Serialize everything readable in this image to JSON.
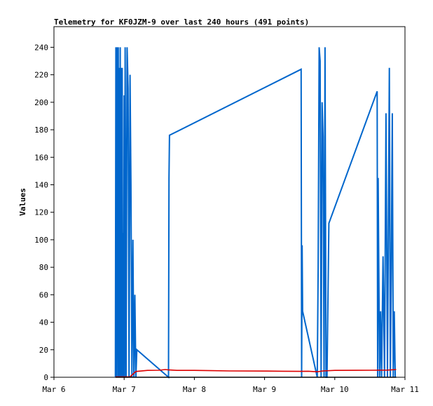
{
  "chart_data": {
    "type": "line",
    "title": "Telemetry for KF0JZM-9 over last 240 hours (491 points)",
    "xlabel": "",
    "ylabel": "Values",
    "x_ticks": [
      "Mar 6",
      "Mar 7",
      "Mar 8",
      "Mar 9",
      "Mar 10",
      "Mar 11"
    ],
    "xlim": [
      "Mar 6",
      "Mar 11"
    ],
    "ylim": [
      0,
      255
    ],
    "y_ticks": [
      0,
      20,
      40,
      60,
      80,
      100,
      120,
      140,
      160,
      180,
      200,
      220,
      240
    ],
    "grid": false,
    "legend": "none",
    "series": [
      {
        "color": "#0066cc",
        "x": [
          "Mar 6 21:00",
          "Mar 6 21:10",
          "Mar 6 21:20",
          "Mar 6 21:30",
          "Mar 6 21:40",
          "Mar 6 21:50",
          "Mar 6 22:00",
          "Mar 6 22:10",
          "Mar 6 22:20",
          "Mar 6 22:30",
          "Mar 6 22:40",
          "Mar 6 22:50",
          "Mar 6 23:00",
          "Mar 6 23:10",
          "Mar 6 23:20",
          "Mar 6 23:30",
          "Mar 6 23:40",
          "Mar 6 23:50",
          "Mar 7 00:00",
          "Mar 7 00:10",
          "Mar 7 00:20",
          "Mar 7 00:40",
          "Mar 7 01:00",
          "Mar 7 01:20",
          "Mar 7 01:40",
          "Mar 7 02:00",
          "Mar 7 02:20",
          "Mar 7 02:40",
          "Mar 7 03:00",
          "Mar 7 03:20",
          "Mar 7 03:40",
          "Mar 7 04:00",
          "Mar 7 04:20",
          "Mar 7 15:10",
          "Mar 7 15:20",
          "Mar 7 15:30",
          "Mar 9 12:30",
          "Mar 9 12:40",
          "Mar 9 12:50",
          "Mar 9 13:00",
          "Mar 9 18:00",
          "Mar 9 18:20",
          "Mar 9 18:40",
          "Mar 9 19:00",
          "Mar 9 19:20",
          "Mar 9 19:40",
          "Mar 9 20:00",
          "Mar 9 20:20",
          "Mar 9 20:40",
          "Mar 9 21:00",
          "Mar 9 21:20",
          "Mar 9 22:00",
          "Mar 10 14:30",
          "Mar 10 14:40",
          "Mar 10 14:50",
          "Mar 10 15:00",
          "Mar 10 15:20",
          "Mar 10 15:40",
          "Mar 10 16:00",
          "Mar 10 16:30",
          "Mar 10 17:00",
          "Mar 10 17:30",
          "Mar 10 18:00",
          "Mar 10 18:40",
          "Mar 10 19:00",
          "Mar 10 19:20",
          "Mar 10 19:40",
          "Mar 10 20:00",
          "Mar 10 20:20",
          "Mar 10 20:40"
        ],
        "y": [
          0,
          240,
          0,
          240,
          225,
          0,
          240,
          0,
          225,
          0,
          240,
          0,
          225,
          0,
          225,
          0,
          105,
          0,
          205,
          0,
          240,
          0,
          240,
          210,
          0,
          220,
          140,
          0,
          100,
          0,
          60,
          0,
          20,
          0,
          145,
          176,
          224,
          0,
          96,
          48,
          0,
          80,
          240,
          230,
          0,
          200,
          175,
          0,
          240,
          0,
          0,
          112,
          208,
          0,
          145,
          95,
          0,
          48,
          0,
          88,
          0,
          192,
          0,
          225,
          0,
          80,
          192,
          0,
          48,
          0
        ]
      },
      {
        "color": "#dd0000",
        "x": [
          "Mar 6 21:00",
          "Mar 7 02:00",
          "Mar 7 04:00",
          "Mar 7 08:00",
          "Mar 7 12:00",
          "Mar 7 14:00",
          "Mar 7 15:00",
          "Mar 7 18:00",
          "Mar 8 00:00",
          "Mar 8 06:00",
          "Mar 8 12:00",
          "Mar 9 00:00",
          "Mar 9 06:00",
          "Mar 9 12:00",
          "Mar 9 15:00",
          "Mar 9 18:00",
          "Mar 9 20:00",
          "Mar 10 00:00",
          "Mar 10 12:00",
          "Mar 10 18:00",
          "Mar 10 21:00"
        ],
        "y": [
          0.3,
          0.3,
          4.2,
          5.0,
          5.1,
          5.6,
          5.4,
          5.0,
          5.0,
          4.8,
          4.6,
          4.5,
          4.4,
          4.3,
          4.4,
          4.0,
          4.6,
          5.0,
          5.1,
          5.2,
          5.6
        ]
      },
      {
        "color": "#000000",
        "x": [
          "Mar 6 21:00",
          "Mar 10 21:00"
        ],
        "y": [
          0,
          0
        ]
      }
    ]
  }
}
